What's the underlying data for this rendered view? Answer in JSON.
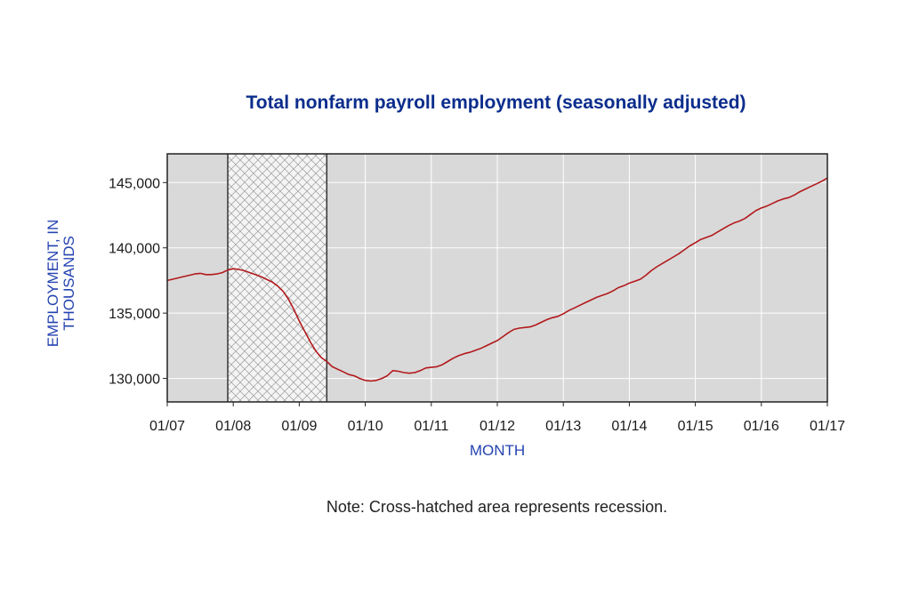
{
  "chart_data": {
    "type": "line",
    "title": "Total nonfarm payroll employment (seasonally adjusted)",
    "xlabel": "MONTH",
    "ylabel": "EMPLOYMENT, IN THOUSANDS",
    "note": "Note: Cross-hatched area represents recession.",
    "x_ticks": [
      "01/07",
      "01/08",
      "01/09",
      "01/10",
      "01/11",
      "01/12",
      "01/13",
      "01/14",
      "01/15",
      "01/16",
      "01/17"
    ],
    "y_ticks": [
      "130,000",
      "135,000",
      "140,000",
      "145,000"
    ],
    "y_tick_values": [
      130000,
      135000,
      140000,
      145000
    ],
    "xlim": [
      "2007-01",
      "2017-01"
    ],
    "ylim": [
      128200,
      147200
    ],
    "grid": true,
    "recession": {
      "start": "2007-12",
      "end": "2009-06"
    },
    "series": [
      {
        "color": "#b3191c",
        "points": [
          [
            "2007-01",
            137500
          ],
          [
            "2007-02",
            137600
          ],
          [
            "2007-03",
            137700
          ],
          [
            "2007-04",
            137800
          ],
          [
            "2007-05",
            137900
          ],
          [
            "2007-06",
            138000
          ],
          [
            "2007-07",
            138050
          ],
          [
            "2007-08",
            137950
          ],
          [
            "2007-09",
            137950
          ],
          [
            "2007-10",
            138000
          ],
          [
            "2007-11",
            138100
          ],
          [
            "2007-12",
            138300
          ],
          [
            "2008-01",
            138400
          ],
          [
            "2008-02",
            138350
          ],
          [
            "2008-03",
            138250
          ],
          [
            "2008-04",
            138100
          ],
          [
            "2008-05",
            137950
          ],
          [
            "2008-06",
            137800
          ],
          [
            "2008-07",
            137600
          ],
          [
            "2008-08",
            137400
          ],
          [
            "2008-09",
            137100
          ],
          [
            "2008-10",
            136700
          ],
          [
            "2008-11",
            136100
          ],
          [
            "2008-12",
            135300
          ],
          [
            "2009-01",
            134400
          ],
          [
            "2009-02",
            133600
          ],
          [
            "2009-03",
            132800
          ],
          [
            "2009-04",
            132100
          ],
          [
            "2009-05",
            131600
          ],
          [
            "2009-06",
            131300
          ],
          [
            "2009-07",
            130900
          ],
          [
            "2009-08",
            130700
          ],
          [
            "2009-09",
            130500
          ],
          [
            "2009-10",
            130300
          ],
          [
            "2009-11",
            130200
          ],
          [
            "2009-12",
            130000
          ],
          [
            "2010-01",
            129850
          ],
          [
            "2010-02",
            129800
          ],
          [
            "2010-03",
            129850
          ],
          [
            "2010-04",
            130000
          ],
          [
            "2010-05",
            130200
          ],
          [
            "2010-06",
            130600
          ],
          [
            "2010-07",
            130550
          ],
          [
            "2010-08",
            130450
          ],
          [
            "2010-09",
            130400
          ],
          [
            "2010-10",
            130450
          ],
          [
            "2010-11",
            130600
          ],
          [
            "2010-12",
            130800
          ],
          [
            "2011-01",
            130850
          ],
          [
            "2011-02",
            130900
          ],
          [
            "2011-03",
            131050
          ],
          [
            "2011-04",
            131300
          ],
          [
            "2011-05",
            131550
          ],
          [
            "2011-06",
            131750
          ],
          [
            "2011-07",
            131900
          ],
          [
            "2011-08",
            132000
          ],
          [
            "2011-09",
            132150
          ],
          [
            "2011-10",
            132300
          ],
          [
            "2011-11",
            132500
          ],
          [
            "2011-12",
            132700
          ],
          [
            "2012-01",
            132900
          ],
          [
            "2012-02",
            133200
          ],
          [
            "2012-03",
            133500
          ],
          [
            "2012-04",
            133750
          ],
          [
            "2012-05",
            133850
          ],
          [
            "2012-06",
            133900
          ],
          [
            "2012-07",
            133950
          ],
          [
            "2012-08",
            134100
          ],
          [
            "2012-09",
            134300
          ],
          [
            "2012-10",
            134500
          ],
          [
            "2012-11",
            134650
          ],
          [
            "2012-12",
            134750
          ],
          [
            "2013-01",
            134950
          ],
          [
            "2013-02",
            135200
          ],
          [
            "2013-03",
            135400
          ],
          [
            "2013-04",
            135600
          ],
          [
            "2013-05",
            135800
          ],
          [
            "2013-06",
            136000
          ],
          [
            "2013-07",
            136200
          ],
          [
            "2013-08",
            136350
          ],
          [
            "2013-09",
            136500
          ],
          [
            "2013-10",
            136700
          ],
          [
            "2013-11",
            136950
          ],
          [
            "2013-12",
            137100
          ],
          [
            "2014-01",
            137300
          ],
          [
            "2014-02",
            137450
          ],
          [
            "2014-03",
            137600
          ],
          [
            "2014-04",
            137900
          ],
          [
            "2014-05",
            138250
          ],
          [
            "2014-06",
            138550
          ],
          [
            "2014-07",
            138800
          ],
          [
            "2014-08",
            139050
          ],
          [
            "2014-09",
            139300
          ],
          [
            "2014-10",
            139550
          ],
          [
            "2014-11",
            139850
          ],
          [
            "2014-12",
            140150
          ],
          [
            "2015-01",
            140400
          ],
          [
            "2015-02",
            140650
          ],
          [
            "2015-03",
            140800
          ],
          [
            "2015-04",
            140950
          ],
          [
            "2015-05",
            141200
          ],
          [
            "2015-06",
            141450
          ],
          [
            "2015-07",
            141700
          ],
          [
            "2015-08",
            141900
          ],
          [
            "2015-09",
            142050
          ],
          [
            "2015-10",
            142250
          ],
          [
            "2015-11",
            142550
          ],
          [
            "2015-12",
            142850
          ],
          [
            "2016-01",
            143050
          ],
          [
            "2016-02",
            143200
          ],
          [
            "2016-03",
            143400
          ],
          [
            "2016-04",
            143600
          ],
          [
            "2016-05",
            143750
          ],
          [
            "2016-06",
            143850
          ],
          [
            "2016-07",
            144050
          ],
          [
            "2016-08",
            144300
          ],
          [
            "2016-09",
            144500
          ],
          [
            "2016-10",
            144700
          ],
          [
            "2016-11",
            144900
          ],
          [
            "2016-12",
            145100
          ],
          [
            "2017-01",
            145350
          ]
        ]
      }
    ]
  }
}
